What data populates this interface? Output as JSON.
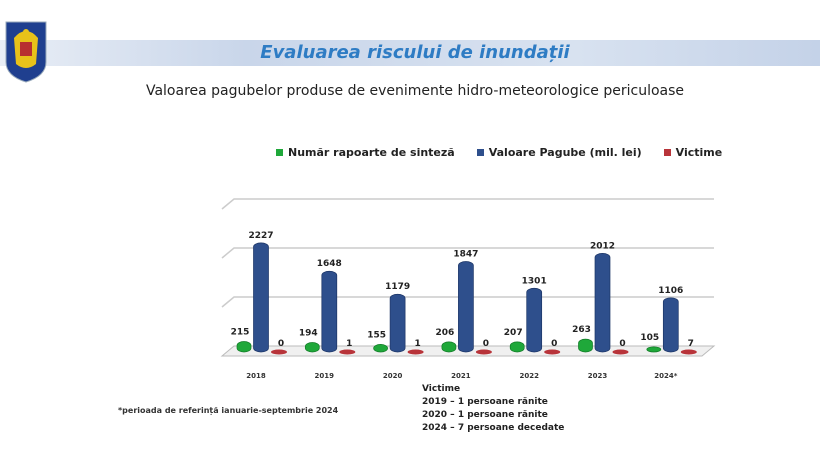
{
  "header": {
    "title": "Evaluarea riscului de inundații",
    "subtitle": "Valoarea pagubelor produse de evenimente hidro-meteorologice periculoase",
    "logo": "coat-of-arms"
  },
  "chart_data": {
    "type": "bar",
    "categories": [
      "2018",
      "2019",
      "2020",
      "2021",
      "2022",
      "2023",
      "2024*"
    ],
    "series": [
      {
        "name": "Număr rapoarte de sinteză",
        "color": "#1fa83a",
        "values": [
          215,
          194,
          155,
          206,
          207,
          263,
          105
        ]
      },
      {
        "name": "Valoare Pagube (mil. lei)",
        "color": "#2e4f8c",
        "values": [
          2227,
          1648,
          1179,
          1847,
          1301,
          2012,
          1106
        ]
      },
      {
        "name": "Victime",
        "color": "#b8343a",
        "values": [
          0,
          1,
          1,
          0,
          0,
          0,
          7
        ]
      }
    ],
    "ylim": [
      0,
      3000
    ],
    "grid": true,
    "legend": "top",
    "three_d": true
  },
  "notes": {
    "footnote": "*perioada de referință ianuarie-septembrie 2024",
    "victime_title": "Victime",
    "victime_lines": [
      "2019 – 1 persoane rănite",
      "2020 – 1 persoane rănite",
      "2024 – 7 persoane decedate"
    ]
  }
}
